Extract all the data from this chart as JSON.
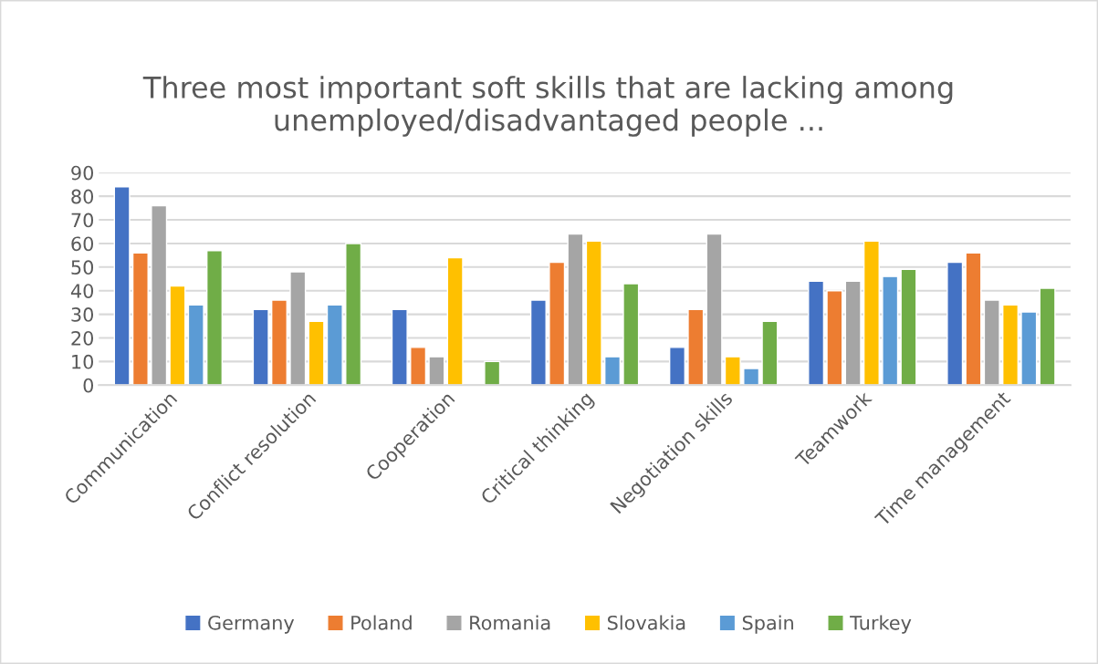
{
  "chart_data": {
    "type": "bar",
    "title": "Three most important soft skills that are lacking among unemployed/disadvantaged people ...",
    "categories": [
      "Communication",
      "Conflict resolution",
      "Cooperation",
      "Critical thinking",
      "Negotiation skills",
      "Teamwork",
      "Time management"
    ],
    "series": [
      {
        "name": "Germany",
        "color": "#4472c4",
        "values": [
          84,
          32,
          32,
          36,
          16,
          44,
          52
        ]
      },
      {
        "name": "Poland",
        "color": "#ed7d31",
        "values": [
          56,
          36,
          16,
          52,
          32,
          40,
          56
        ]
      },
      {
        "name": "Romania",
        "color": "#a5a5a5",
        "values": [
          76,
          48,
          12,
          64,
          64,
          44,
          36
        ]
      },
      {
        "name": "Slovakia",
        "color": "#ffc000",
        "values": [
          42,
          27,
          54,
          61,
          12,
          61,
          34
        ]
      },
      {
        "name": "Spain",
        "color": "#5b9bd5",
        "values": [
          34,
          34,
          null,
          12,
          7,
          46,
          31
        ]
      },
      {
        "name": "Turkey",
        "color": "#70ad47",
        "values": [
          57,
          60,
          10,
          43,
          27,
          49,
          41
        ]
      }
    ],
    "ylim": [
      0,
      90
    ],
    "yticks": [
      0,
      10,
      20,
      30,
      40,
      50,
      60,
      70,
      80,
      90
    ],
    "grid": "y",
    "legend": "bottom"
  }
}
